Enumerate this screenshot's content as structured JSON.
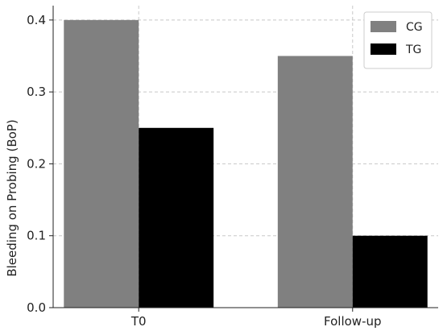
{
  "chart_data": {
    "type": "bar",
    "categories": [
      "T0",
      "Follow-up"
    ],
    "series": [
      {
        "name": "CG",
        "values": [
          0.4,
          0.35
        ],
        "color": "#808080"
      },
      {
        "name": "TG",
        "values": [
          0.25,
          0.1
        ],
        "color": "#000000"
      }
    ],
    "title": "",
    "xlabel": "",
    "ylabel": "Bleeding on Probing (BoP)",
    "ylim": [
      0,
      0.42
    ],
    "yticks": [
      0.0,
      0.1,
      0.2,
      0.3,
      0.4
    ],
    "ytick_labels": [
      "0.0",
      "0.1",
      "0.2",
      "0.3",
      "0.4"
    ],
    "grid": true,
    "legend_position": "top-right"
  }
}
